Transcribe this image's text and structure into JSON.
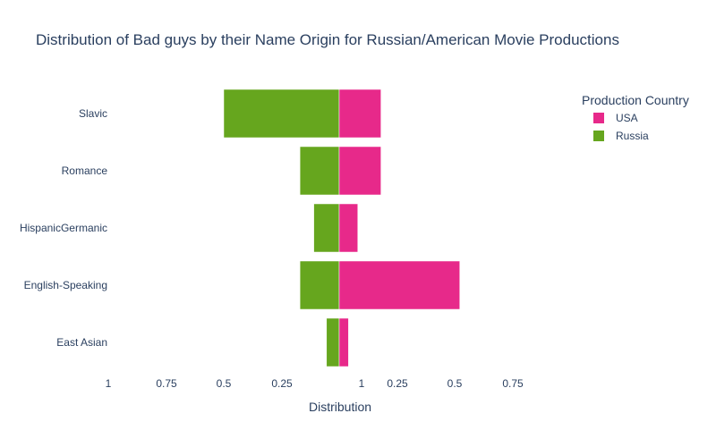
{
  "chart_data": {
    "type": "bar",
    "orientation": "horizontal",
    "barmode": "diverging",
    "title": "Distribution of Bad guys by their Name Origin for Russian/American Movie Productions",
    "xlabel": "Distribution",
    "ylabel": "",
    "categories": [
      "Slavic",
      "Romance",
      "HispanicGermanic",
      "English-Speaking",
      "East Asian"
    ],
    "x_tick_labels": [
      "1",
      "0.75",
      "0.5",
      "0.25",
      "1",
      "0.25",
      "0.5",
      "0.75"
    ],
    "xlim_left": [
      1,
      0
    ],
    "xlim_right": [
      0,
      1
    ],
    "grid": false,
    "legend": {
      "title": "Production Country",
      "position": "top-right"
    },
    "series": [
      {
        "name": "USA",
        "side": "right",
        "color": "#e7298a",
        "values": [
          0.18,
          0.18,
          0.08,
          0.52,
          0.04
        ]
      },
      {
        "name": "Russia",
        "side": "left",
        "color": "#66a61e",
        "values": [
          0.5,
          0.17,
          0.11,
          0.17,
          0.055
        ]
      }
    ]
  }
}
